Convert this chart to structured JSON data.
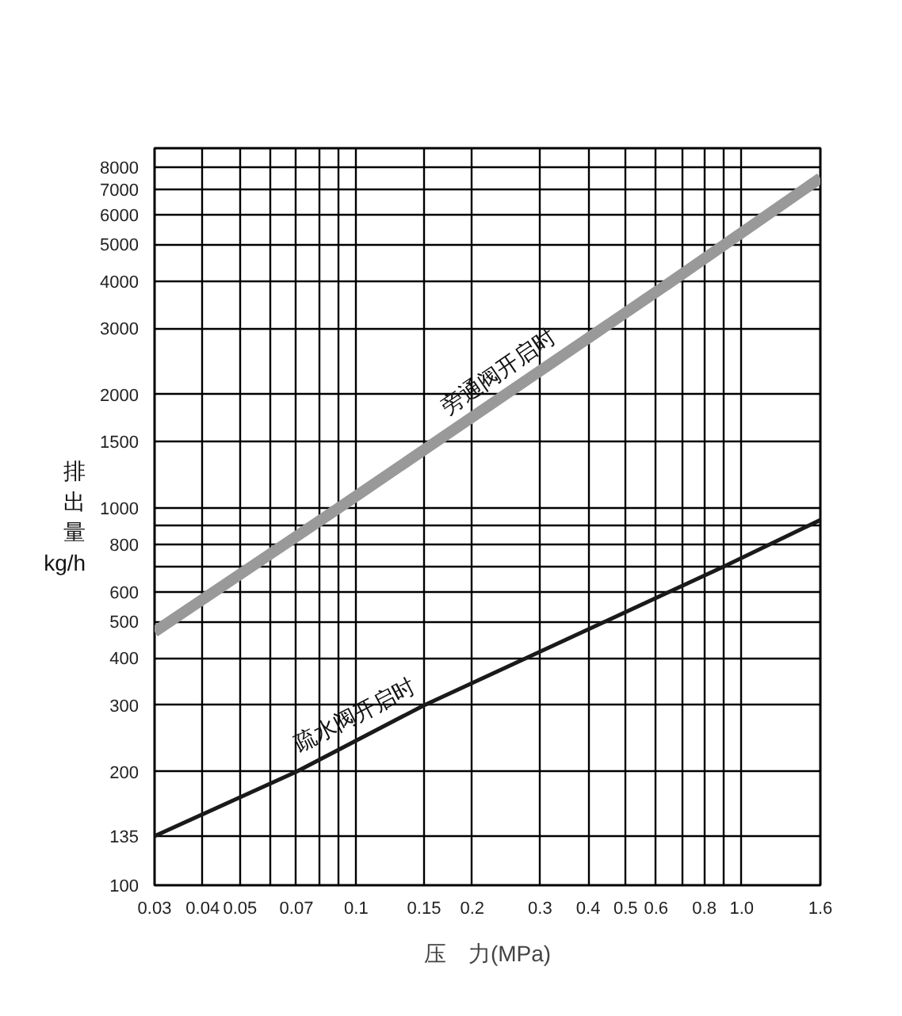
{
  "chart_data": {
    "type": "line",
    "xlabel": "压　力(MPa)",
    "ylabel": "排出量 kg/h",
    "log": "xy",
    "grid": true,
    "xlim": [
      0.03,
      1.6
    ],
    "ylim": [
      100,
      9000
    ],
    "xticks": [
      0.03,
      0.04,
      0.05,
      {
        "value": 0.06,
        "label": null
      },
      0.07,
      {
        "value": 0.08,
        "label": null
      },
      {
        "value": 0.09,
        "label": null
      },
      0.1,
      0.15,
      0.2,
      0.3,
      0.4,
      0.5,
      0.6,
      {
        "value": 0.7,
        "label": null
      },
      0.8,
      {
        "value": 0.9,
        "label": null
      },
      {
        "value": 1.0,
        "label": "1.0"
      },
      1.6
    ],
    "yticks": [
      100,
      135,
      200,
      300,
      400,
      500,
      600,
      {
        "value": 700,
        "label": null
      },
      800,
      {
        "value": 900,
        "label": null
      },
      1000,
      1500,
      2000,
      3000,
      4000,
      5000,
      6000,
      7000,
      8000
    ],
    "series": [
      {
        "name": "旁通阀开启时",
        "color": "#999999",
        "x": [
          0.03,
          0.09,
          0.66,
          1.6
        ],
        "values": [
          470,
          1000,
          4000,
          7500
        ]
      },
      {
        "name": "疏水阀开启时",
        "color": "#1a1a1a",
        "x": [
          0.03,
          0.07,
          0.15,
          0.9,
          1.6
        ],
        "values": [
          135,
          200,
          300,
          700,
          930
        ]
      }
    ]
  }
}
